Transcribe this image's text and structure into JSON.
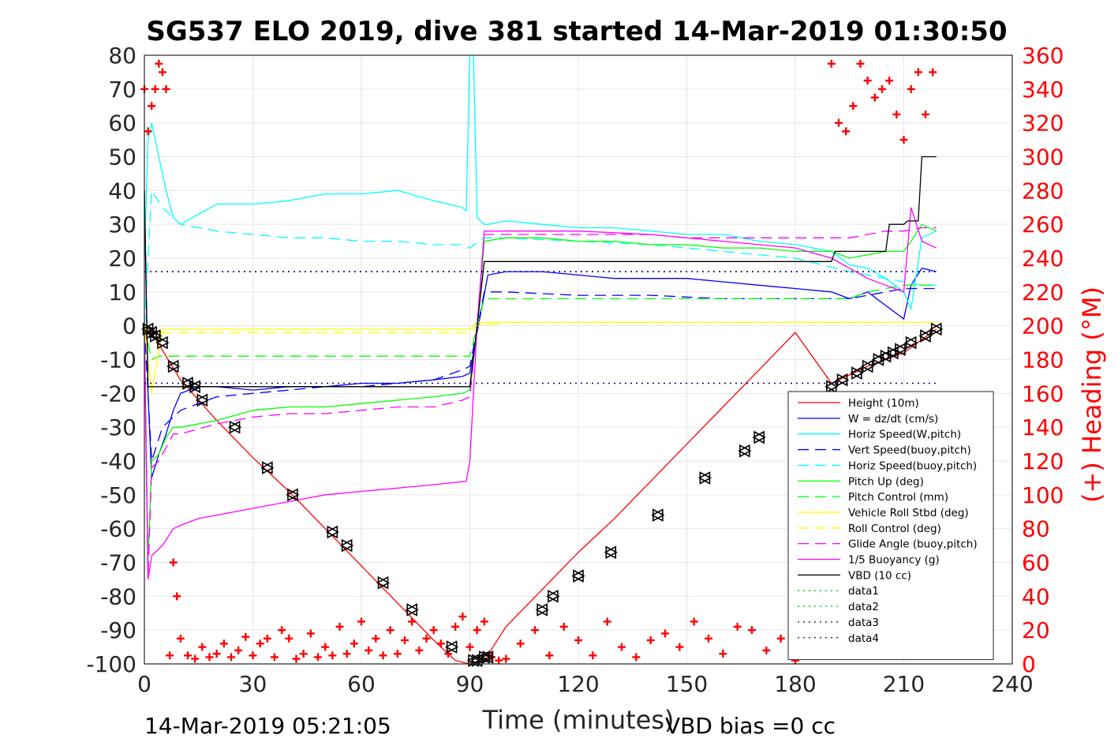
{
  "chart_data": {
    "type": "line",
    "title": "SG537 ELO 2019, dive 381 started 14-Mar-2019 01:30:50",
    "xlabel": "Time (minutes)",
    "ylabel": "",
    "y2label": "(+) Heading (°M)",
    "xlim": [
      0,
      240
    ],
    "ylim": [
      -100,
      80
    ],
    "y2lim": [
      0,
      360
    ],
    "xticks": [
      0,
      30,
      60,
      90,
      120,
      150,
      180,
      210,
      240
    ],
    "yticks": [
      -100,
      -90,
      -80,
      -70,
      -60,
      -50,
      -40,
      -30,
      -20,
      -10,
      0,
      10,
      20,
      30,
      40,
      50,
      60,
      70,
      80
    ],
    "y2ticks": [
      0,
      20,
      40,
      60,
      80,
      100,
      120,
      140,
      160,
      180,
      200,
      220,
      240,
      260,
      280,
      300,
      320,
      340,
      360
    ],
    "grid": true,
    "legend_position": "lower-right",
    "footer_left": "14-Mar-2019 05:21:05",
    "footer_right": "VBD bias =0 cc",
    "colors": {
      "red": "#ff0000",
      "blue": "#0000ff",
      "cyan": "#00ffff",
      "green": "#00ff00",
      "yellow": "#ffff00",
      "magenta": "#ff00ff",
      "black": "#000000",
      "dotgreen": "#00cc00",
      "dotblue": "#000088"
    },
    "series": [
      {
        "name": "Height (10m)",
        "color": "red",
        "style": "solid",
        "axis": "left",
        "x": [
          0,
          2,
          10,
          20,
          30,
          40,
          50,
          60,
          70,
          80,
          86,
          90,
          94,
          100,
          110,
          120,
          130,
          140,
          150,
          160,
          170,
          180,
          190,
          200,
          210,
          219
        ],
        "y": [
          0,
          -2,
          -16,
          -28,
          -39,
          -49,
          -60,
          -71,
          -82,
          -93,
          -99,
          -100,
          -99,
          -89,
          -78,
          -67,
          -57,
          -46,
          -35,
          -24,
          -13,
          -2,
          -17,
          -12,
          -8,
          -1
        ]
      },
      {
        "name": "W = dz/dt (cm/s)",
        "color": "blue",
        "style": "solid",
        "axis": "left",
        "x": [
          0,
          1,
          2,
          4,
          6,
          8,
          10,
          15,
          20,
          30,
          40,
          50,
          60,
          70,
          80,
          88,
          90,
          92,
          95,
          100,
          110,
          120,
          130,
          140,
          150,
          160,
          170,
          180,
          190,
          195,
          200,
          205,
          210,
          212,
          215,
          219
        ],
        "y": [
          40,
          -20,
          -45,
          -38,
          -32,
          -25,
          -20,
          -18,
          -18,
          -19,
          -18,
          -18,
          -17,
          -17,
          -16,
          -15,
          -14,
          -2,
          15,
          16,
          16,
          15,
          14,
          14,
          14,
          13,
          12,
          11,
          10,
          8,
          10,
          6,
          2,
          12,
          17,
          16
        ]
      },
      {
        "name": "Horiz Speed(W,pitch)",
        "color": "cyan",
        "style": "solid",
        "axis": "left",
        "x": [
          0,
          1,
          2,
          4,
          6,
          8,
          10,
          20,
          30,
          40,
          50,
          60,
          70,
          80,
          88,
          89,
          90,
          91,
          92,
          94,
          95,
          100,
          110,
          120,
          130,
          140,
          150,
          160,
          170,
          180,
          190,
          195,
          200,
          205,
          210,
          212,
          215,
          219
        ],
        "y": [
          20,
          55,
          60,
          50,
          40,
          32,
          30,
          36,
          36,
          37,
          39,
          39,
          40,
          37,
          35,
          34,
          80,
          80,
          32,
          30,
          30,
          31,
          30,
          29,
          29,
          28,
          27,
          27,
          25,
          24,
          22,
          18,
          17,
          14,
          10,
          5,
          26,
          28
        ]
      },
      {
        "name": "Vert Speed(buoy,pitch)",
        "color": "blue",
        "style": "dashed",
        "axis": "left",
        "x": [
          0,
          2,
          5,
          10,
          20,
          30,
          40,
          50,
          60,
          70,
          80,
          88,
          90,
          94,
          100,
          120,
          140,
          160,
          180,
          195,
          200,
          205,
          210,
          215,
          219
        ],
        "y": [
          0,
          -40,
          -30,
          -25,
          -21,
          -20,
          -19,
          -18,
          -18,
          -17,
          -16,
          -13,
          -12,
          10,
          10,
          9,
          9,
          8,
          8,
          8,
          9,
          10,
          11,
          11,
          11
        ]
      },
      {
        "name": "Horiz Speed(buoy,pitch)",
        "color": "cyan",
        "style": "dashed",
        "axis": "left",
        "x": [
          0,
          2,
          5,
          10,
          20,
          30,
          40,
          50,
          60,
          70,
          80,
          88,
          90,
          94,
          100,
          120,
          140,
          160,
          180,
          195,
          200,
          205,
          210,
          215,
          219
        ],
        "y": [
          0,
          40,
          35,
          30,
          28,
          27,
          26,
          26,
          25,
          25,
          24,
          24,
          23,
          26,
          26,
          25,
          24,
          22,
          20,
          16,
          15,
          14,
          13,
          12,
          12
        ]
      },
      {
        "name": "Pitch Up (deg)",
        "color": "green",
        "style": "solid",
        "axis": "left",
        "x": [
          0,
          1,
          2,
          4,
          6,
          8,
          10,
          20,
          30,
          40,
          50,
          60,
          70,
          80,
          88,
          90,
          92,
          94,
          100,
          110,
          120,
          130,
          140,
          150,
          160,
          170,
          180,
          190,
          195,
          200,
          205,
          210,
          212,
          215,
          219
        ],
        "y": [
          0,
          -70,
          -40,
          -38,
          -33,
          -30,
          -30,
          -28,
          -25,
          -24,
          -24,
          -23,
          -22,
          -21,
          -20,
          -19,
          -1,
          25,
          26,
          26,
          25,
          25,
          24,
          24,
          23,
          23,
          22,
          22,
          20,
          21,
          22,
          22,
          25,
          30,
          28
        ]
      },
      {
        "name": "Pitch Control (mm)",
        "color": "green",
        "style": "dashed",
        "axis": "left",
        "x": [
          0,
          2,
          4,
          10,
          20,
          40,
          60,
          80,
          88,
          90,
          92,
          94,
          100,
          120,
          140,
          160,
          180,
          195,
          200,
          205,
          210,
          215,
          219
        ],
        "y": [
          0,
          -10,
          -9,
          -9,
          -9,
          -9,
          -9,
          -9,
          -9,
          -9,
          0,
          8,
          8,
          8,
          8,
          8,
          8,
          8,
          10,
          11,
          12,
          12,
          12
        ]
      },
      {
        "name": "Vehicle Roll Stbd (deg)",
        "color": "yellow",
        "style": "solid",
        "axis": "left",
        "x": [
          0,
          2,
          5,
          10,
          20,
          30,
          40,
          50,
          60,
          70,
          80,
          88,
          90,
          92,
          94,
          100,
          120,
          140,
          160,
          180,
          195,
          200,
          205,
          210,
          215,
          219
        ],
        "y": [
          0,
          -20,
          -1,
          -1,
          -1,
          -1,
          -1,
          -1,
          -1,
          -1,
          -1,
          -1,
          -1,
          1,
          1,
          1,
          1,
          1,
          1,
          1,
          1,
          1,
          1,
          1,
          1,
          1
        ]
      },
      {
        "name": "Roll Control (deg)",
        "color": "yellow",
        "style": "dashed",
        "axis": "left",
        "x": [
          0,
          5,
          10,
          20,
          40,
          60,
          80,
          88,
          90,
          92,
          100,
          120,
          140,
          160,
          180,
          200,
          219
        ],
        "y": [
          0,
          -2,
          -2,
          -2,
          -2,
          -2,
          -2,
          -2,
          -2,
          0,
          1,
          1,
          1,
          1,
          1,
          1,
          1
        ]
      },
      {
        "name": "Glide Angle (buoy,pitch)",
        "color": "magenta",
        "style": "dashed",
        "axis": "left",
        "x": [
          0,
          1,
          2,
          4,
          6,
          8,
          10,
          20,
          30,
          40,
          50,
          60,
          70,
          80,
          88,
          90,
          92,
          94,
          100,
          110,
          120,
          130,
          140,
          150,
          160,
          170,
          180,
          190,
          195,
          200,
          205,
          210,
          215,
          219
        ],
        "y": [
          0,
          -75,
          -42,
          -40,
          -36,
          -32,
          -32,
          -29,
          -27,
          -26,
          -26,
          -25,
          -24,
          -24,
          -22,
          -21,
          0,
          27,
          27,
          27,
          27,
          27,
          27,
          26,
          26,
          26,
          26,
          26,
          26,
          27,
          28,
          28,
          29,
          29
        ]
      },
      {
        "name": "1/5 Buoyancy (g)",
        "color": "magenta",
        "style": "solid",
        "axis": "left",
        "x": [
          0,
          1,
          2,
          5,
          8,
          10,
          15,
          20,
          30,
          40,
          50,
          60,
          70,
          80,
          89,
          90,
          92,
          94,
          100,
          120,
          140,
          160,
          180,
          190,
          195,
          200,
          205,
          210,
          212,
          215,
          219
        ],
        "y": [
          -1,
          -75,
          -68,
          -65,
          -60,
          -59,
          -57,
          -56,
          -54,
          -52,
          -50,
          -49,
          -48,
          -47,
          -46,
          -40,
          0,
          28,
          28,
          28,
          27,
          25,
          23,
          20,
          17,
          14,
          12,
          10,
          35,
          25,
          23
        ]
      },
      {
        "name": "VBD (10 cc)",
        "color": "black",
        "style": "solid",
        "axis": "left",
        "x": [
          0,
          1,
          2,
          3,
          10,
          40,
          60,
          80,
          89,
          90,
          92,
          94,
          95,
          100,
          120,
          140,
          160,
          180,
          190,
          191,
          200,
          205,
          206,
          210,
          211,
          214,
          215,
          219
        ],
        "y": [
          40,
          -18,
          -18,
          -18,
          -18,
          -18,
          -18,
          -18,
          -18,
          -18,
          0,
          19,
          19,
          19,
          19,
          19,
          19,
          19,
          19,
          22,
          22,
          22,
          30,
          30,
          31,
          31,
          50,
          50
        ]
      },
      {
        "name": "data1",
        "color": "dotgreen",
        "style": "dotted",
        "axis": "left",
        "x": [],
        "y": []
      },
      {
        "name": "data2",
        "color": "dotgreen",
        "style": "dotted",
        "axis": "left",
        "x": [],
        "y": []
      },
      {
        "name": "data3",
        "color": "dotblue",
        "style": "dotted",
        "axis": "left",
        "x": [
          0,
          219
        ],
        "y": [
          16,
          16
        ]
      },
      {
        "name": "data4",
        "color": "dotblue",
        "style": "dotted",
        "axis": "left",
        "x": [
          0,
          219
        ],
        "y": [
          -17,
          -17
        ]
      }
    ],
    "heading": {
      "name": "(+) Heading (°M)",
      "color": "red",
      "marker": "+",
      "axis": "right",
      "x": [
        0,
        1,
        2,
        3,
        4,
        5,
        6,
        7,
        8,
        9,
        10,
        12,
        14,
        16,
        18,
        20,
        22,
        24,
        26,
        28,
        30,
        32,
        34,
        36,
        38,
        40,
        42,
        44,
        46,
        48,
        50,
        52,
        54,
        56,
        58,
        60,
        62,
        64,
        66,
        68,
        70,
        72,
        74,
        76,
        78,
        80,
        82,
        84,
        86,
        88,
        90,
        92,
        94,
        96,
        98,
        100,
        104,
        108,
        112,
        116,
        120,
        124,
        128,
        132,
        136,
        140,
        144,
        148,
        152,
        156,
        160,
        164,
        168,
        172,
        176,
        180,
        184,
        188,
        190,
        192,
        194,
        196,
        198,
        200,
        202,
        204,
        206,
        208,
        210,
        212,
        214,
        216,
        218
      ],
      "y": [
        340,
        315,
        330,
        340,
        355,
        350,
        340,
        5,
        60,
        40,
        15,
        5,
        3,
        10,
        4,
        6,
        12,
        4,
        8,
        16,
        5,
        12,
        15,
        4,
        20,
        15,
        3,
        6,
        18,
        4,
        10,
        5,
        22,
        6,
        12,
        25,
        8,
        15,
        5,
        20,
        6,
        14,
        25,
        8,
        15,
        20,
        12,
        6,
        22,
        28,
        10,
        20,
        25,
        4,
        2,
        3,
        12,
        20,
        5,
        22,
        14,
        5,
        25,
        10,
        4,
        14,
        18,
        10,
        25,
        15,
        6,
        22,
        20,
        8,
        15,
        2,
        8,
        25,
        355,
        320,
        315,
        330,
        355,
        345,
        335,
        340,
        345,
        325,
        310,
        340,
        350,
        325,
        350
      ]
    },
    "markers": {
      "name": "triangles",
      "x": [
        1,
        2,
        3,
        5,
        8,
        12,
        14,
        16,
        25,
        34,
        41,
        52,
        56,
        66,
        74,
        85,
        91,
        92,
        94,
        95,
        110,
        113,
        120,
        129,
        142,
        155,
        166,
        170,
        190,
        193,
        197,
        200,
        203,
        205,
        207,
        209,
        212,
        216,
        219
      ],
      "y": [
        -1,
        -2,
        -3,
        -5,
        -12,
        -17,
        -18,
        -22,
        -30,
        -42,
        -50,
        -61,
        -65,
        -76,
        -84,
        -95,
        -99,
        -99,
        -98,
        -98,
        -84,
        -80,
        -74,
        -67,
        -56,
        -45,
        -37,
        -33,
        -18,
        -16,
        -14,
        -12,
        -10,
        -9,
        -8,
        -7,
        -5,
        -3,
        -1
      ]
    }
  }
}
